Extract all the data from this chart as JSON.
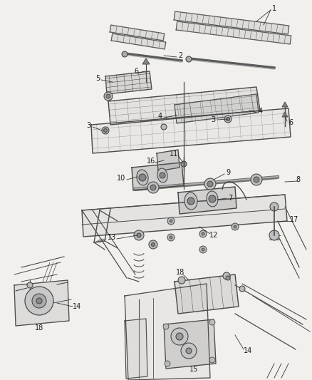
{
  "bg_color": "#f2f0ed",
  "line_color": "#4a4a4a",
  "label_color": "#1a1a1a",
  "fig_width": 4.38,
  "fig_height": 5.33,
  "dpi": 100
}
